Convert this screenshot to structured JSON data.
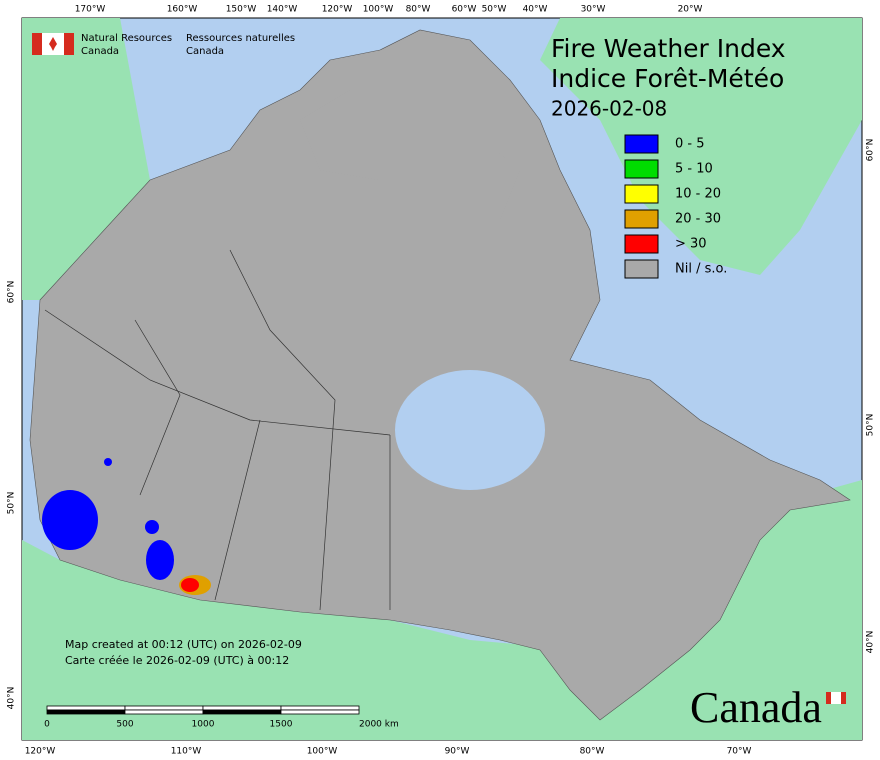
{
  "header": {
    "agency_en": "Natural Resources",
    "agency_en2": "Canada",
    "agency_fr": "Ressources naturelles",
    "agency_fr2": "Canada"
  },
  "title": {
    "line1": "Fire Weather Index",
    "line2": "Indice Forêt-Météo",
    "date": "2026-02-08"
  },
  "legend": [
    {
      "label": "0 - 5",
      "color": "#0000ff"
    },
    {
      "label": "5 - 10",
      "color": "#00dd00"
    },
    {
      "label": "10 - 20",
      "color": "#ffff00"
    },
    {
      "label": "20 - 30",
      "color": "#e0a000"
    },
    {
      "label": "> 30",
      "color": "#ff0000"
    },
    {
      "label": "Nil / s.o.",
      "color": "#a9a9a9"
    }
  ],
  "graticule": {
    "top": [
      "170°W",
      "160°W",
      "150°W",
      "140°W",
      "120°W",
      "100°W",
      "80°W",
      "60°W",
      "50°W",
      "40°W",
      "30°W",
      "20°W"
    ],
    "bottom": [
      "120°W",
      "110°W",
      "100°W",
      "90°W",
      "80°W",
      "70°W"
    ],
    "left": [
      "60°N",
      "50°N",
      "40°N"
    ],
    "right": [
      "60°N",
      "50°N",
      "40°N"
    ]
  },
  "notes": [
    "Map created at 00:12 (UTC) on 2026-02-09",
    "Carte créée le 2026-02-09 (UTC) à 00:12"
  ],
  "scale_bar": {
    "labels": [
      "0",
      "500",
      "1000",
      "1500",
      "2000 km"
    ]
  },
  "wordmark": "Canada"
}
